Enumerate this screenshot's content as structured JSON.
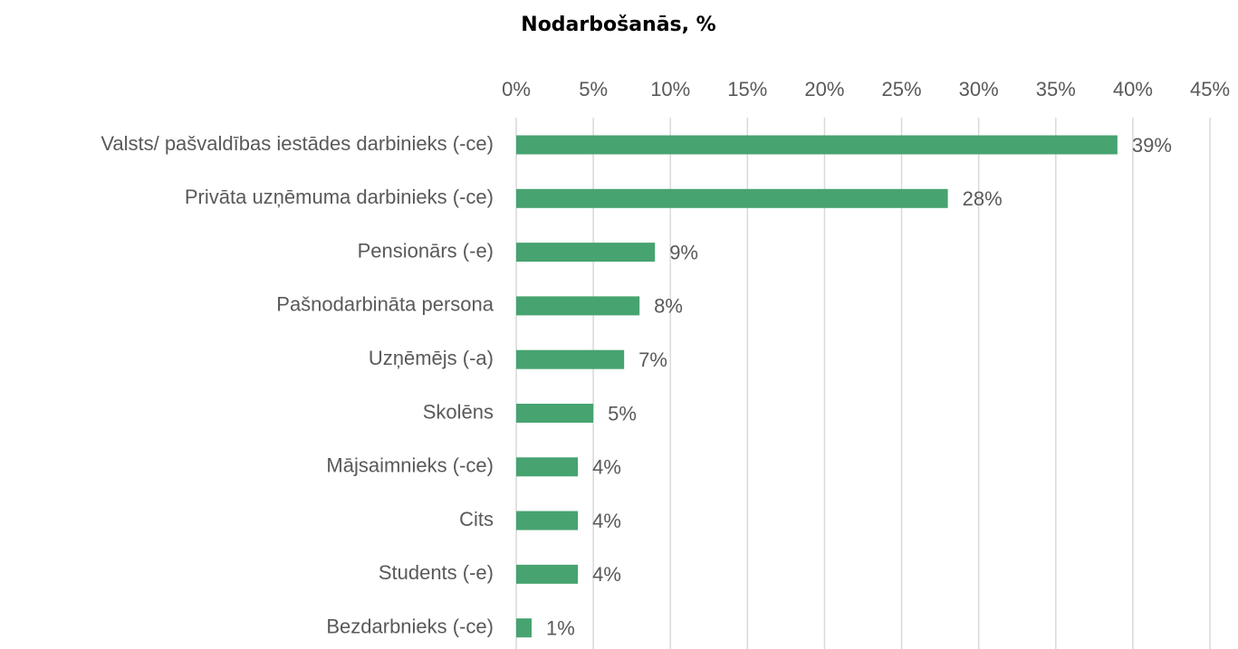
{
  "chart_data": {
    "type": "bar",
    "orientation": "horizontal",
    "title": "Nodarbošanās, %",
    "categories": [
      "Valsts/ pašvaldības iestādes darbinieks (-ce)",
      "Privāta uzņēmuma darbinieks (-ce)",
      "Pensionārs (-e)",
      "Pašnodarbināta persona",
      "Uzņēmējs (-a)",
      "Skolēns",
      "Mājsaimnieks (-ce)",
      "Cits",
      "Students (-e)",
      "Bezdarbnieks (-ce)"
    ],
    "values": [
      39,
      28,
      9,
      8,
      7,
      5,
      4,
      4,
      4,
      1
    ],
    "value_labels": [
      "39%",
      "28%",
      "9%",
      "8%",
      "7%",
      "5%",
      "4%",
      "4%",
      "4%",
      "1%"
    ],
    "color": "#47a370",
    "xlim": [
      0,
      45
    ],
    "xticks": [
      {
        "value": 0,
        "label": "0%"
      },
      {
        "value": 5,
        "label": "5%"
      },
      {
        "value": 10,
        "label": "10%"
      },
      {
        "value": 15,
        "label": "15%"
      },
      {
        "value": 20,
        "label": "20%"
      },
      {
        "value": 25,
        "label": "25%"
      },
      {
        "value": 30,
        "label": "30%"
      },
      {
        "value": 35,
        "label": "35%"
      },
      {
        "value": 40,
        "label": "40%"
      },
      {
        "value": 45,
        "label": "45%"
      }
    ],
    "grid": true
  }
}
